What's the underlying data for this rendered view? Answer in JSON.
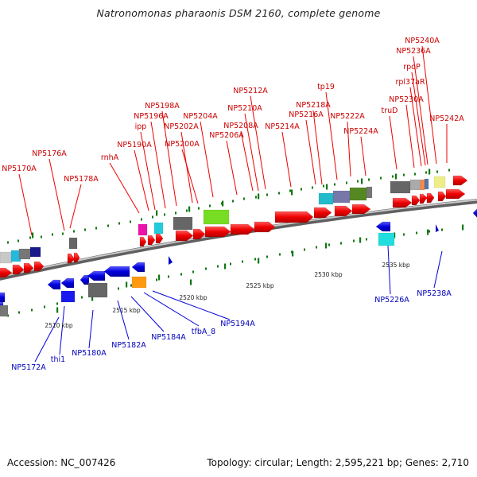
{
  "title": "Natronomonas pharaonis DSM 2160, complete genome",
  "footer": {
    "accession": "Accession: NC_007426",
    "stats": "Topology: circular; Length: 2,595,221 bp; Genes: 2,710"
  },
  "colors": {
    "forward": "#ee0000",
    "reverse": "#0000dd",
    "backbone": "#8a8a8a",
    "tick": "#117711"
  },
  "kbp_labels": [
    "2510 kbp",
    "2515 kbp",
    "2520 kbp",
    "2525 kbp",
    "2530 kbp",
    "2535 kbp"
  ],
  "forward_labels": [
    "NP5170A",
    "NP5176A",
    "NP5178A",
    "rnhA",
    "NP5190A",
    "ipp",
    "NP5196A",
    "NP5198A",
    "NP5202A",
    "NP5200A",
    "NP5204A",
    "NP5206A",
    "NP5208A",
    "NP5210A",
    "NP5212A",
    "NP5214A",
    "NP5216A",
    "NP5218A",
    "tp19",
    "NP5222A",
    "NP5224A",
    "truD",
    "NP5230A",
    "rpl37aR",
    "rpoP",
    "NP5236A",
    "NP5240A",
    "NP5242A"
  ],
  "reverse_labels": [
    "NP5172A",
    "thi1",
    "NP5180A",
    "NP5182A",
    "NP5184A",
    "tfbA_8",
    "NP5194A",
    "NP5226A",
    "NP5238A"
  ]
}
